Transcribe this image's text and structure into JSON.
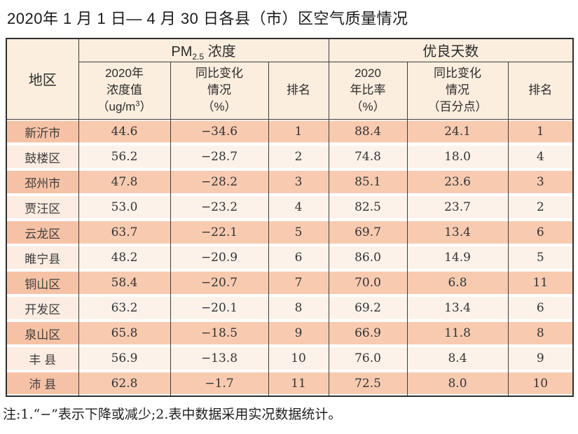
{
  "page": {
    "title": "2020年 1 月 1 日— 4 月 30 日各县（市）区空气质量情况",
    "note": "注:1.“−”表示下降或减少;2.表中数据采用实况数据统计。"
  },
  "colors": {
    "header_bg": "#fceede",
    "stripe_odd": "#f8cbb1",
    "stripe_odd_region": "#f6c2a6",
    "stripe_even": "#fdf2ea",
    "stripe_even_region": "#fcece1",
    "border": "#3d3d3d",
    "text": "#333333"
  },
  "table": {
    "region_header": "地区",
    "pm_group": {
      "pre": "PM",
      "sub": "2.5",
      "post": " 浓度"
    },
    "good_group": "优良天数",
    "sub_headers": {
      "conc_l1": "2020年",
      "conc_l2": "浓度值",
      "conc_unit_pre": "（ug/m",
      "conc_unit_sup": "3",
      "conc_unit_post": "）",
      "chg_l1": "同比变化",
      "chg_l2": "情况",
      "chg_l3": "（%）",
      "rank": "排名",
      "ratio_l1": "2020",
      "ratio_l2": "年比率",
      "ratio_l3": "（%）",
      "chg2_l1": "同比变化",
      "chg2_l2": "情况",
      "chg2_l3": "（百分点）",
      "rank2": "排名"
    },
    "rows": [
      {
        "region": "新沂市",
        "pm_value": "44.6",
        "pm_change": "−34.6",
        "pm_rank": "1",
        "good_ratio": "88.4",
        "good_change": "24.1",
        "good_rank": "1"
      },
      {
        "region": "鼓楼区",
        "pm_value": "56.2",
        "pm_change": "−28.7",
        "pm_rank": "2",
        "good_ratio": "74.8",
        "good_change": "18.0",
        "good_rank": "4"
      },
      {
        "region": "邳州市",
        "pm_value": "47.8",
        "pm_change": "−28.2",
        "pm_rank": "3",
        "good_ratio": "85.1",
        "good_change": "23.6",
        "good_rank": "3"
      },
      {
        "region": "贾汪区",
        "pm_value": "53.0",
        "pm_change": "−23.2",
        "pm_rank": "4",
        "good_ratio": "82.5",
        "good_change": "23.7",
        "good_rank": "2"
      },
      {
        "region": "云龙区",
        "pm_value": "63.7",
        "pm_change": "−22.1",
        "pm_rank": "5",
        "good_ratio": "69.7",
        "good_change": "13.4",
        "good_rank": "6"
      },
      {
        "region": "睢宁县",
        "pm_value": "48.2",
        "pm_change": "−20.9",
        "pm_rank": "6",
        "good_ratio": "86.0",
        "good_change": "14.9",
        "good_rank": "5"
      },
      {
        "region": "铜山区",
        "pm_value": "58.4",
        "pm_change": "−20.7",
        "pm_rank": "7",
        "good_ratio": "70.0",
        "good_change": "6.8",
        "good_rank": "11"
      },
      {
        "region": "开发区",
        "pm_value": "63.2",
        "pm_change": "−20.1",
        "pm_rank": "8",
        "good_ratio": "69.2",
        "good_change": "13.4",
        "good_rank": "6"
      },
      {
        "region": "泉山区",
        "pm_value": "65.8",
        "pm_change": "−18.5",
        "pm_rank": "9",
        "good_ratio": "66.9",
        "good_change": "11.8",
        "good_rank": "8"
      },
      {
        "region": "丰 县",
        "pm_value": "56.9",
        "pm_change": "−13.8",
        "pm_rank": "10",
        "good_ratio": "76.0",
        "good_change": "8.4",
        "good_rank": "9"
      },
      {
        "region": "沛 县",
        "pm_value": "62.8",
        "pm_change": "−1.7",
        "pm_rank": "11",
        "good_ratio": "72.5",
        "good_change": "8.0",
        "good_rank": "10"
      }
    ]
  }
}
